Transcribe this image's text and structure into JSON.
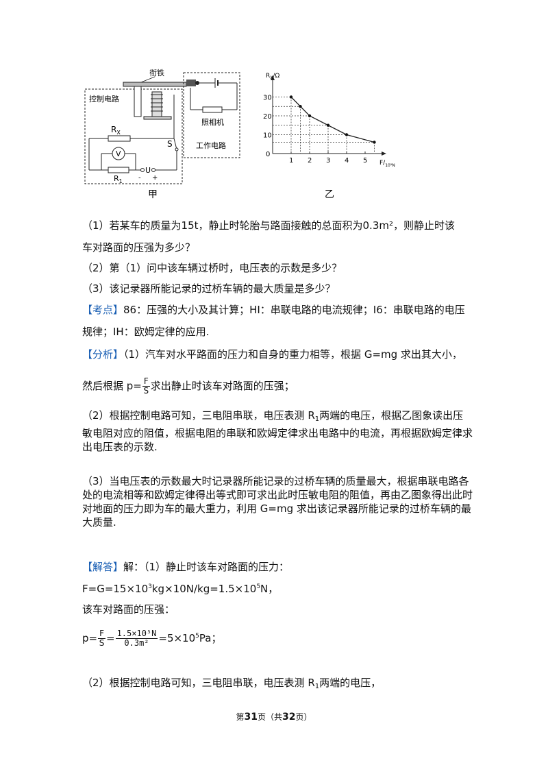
{
  "figure": {
    "circuit": {
      "armature": "衔铁",
      "control_circuit": "控制电路",
      "rx": "R",
      "rx_sub": "X",
      "voltmeter": "V",
      "r1": "R",
      "r1_sub": "1",
      "u": "U",
      "minus": "-",
      "plus": "+",
      "s": "S",
      "camera": "照相机",
      "work_circuit": "工作电路",
      "caption": "甲"
    },
    "graph": {
      "ylabel": "R",
      "ylabel_sub": "X",
      "ylabel_unit": "/Ω",
      "xlabel": "F/",
      "xlabel_unit": "10⁵N",
      "origin": "0",
      "caption": "乙"
    }
  },
  "chart_data": {
    "type": "line",
    "x": [
      1,
      1.5,
      2,
      3,
      4,
      5.5
    ],
    "y": [
      30,
      25,
      20,
      15,
      10,
      6
    ],
    "xticks": [
      "1",
      "2",
      "3",
      "4",
      "5"
    ],
    "yticks": [
      "10",
      "20",
      "30"
    ],
    "xlim": [
      0,
      6
    ],
    "ylim": [
      0,
      40
    ],
    "grid": "dashed guides to points"
  },
  "questions": {
    "q1a": "（1）若某车的质量为15t，静止时轮胎与路面接触的总面积为0.3m²，则静止时该",
    "q1b": "车对路面的压强为多少？",
    "q2": "（2）第（1）问中该车辆过桥时，电压表的示数是多少？",
    "q3": "（3）该记录器所能记录的过桥车辆的最大质量是多少？"
  },
  "kaodian": {
    "tag": "【考点】",
    "line1": "86：压强的大小及其计算；HI：串联电路的电流规律；I6：串联电路的电压",
    "line2": "规律；IH：欧姆定律的应用."
  },
  "fenxi": {
    "tag": "【分析】",
    "line1": "（1）汽车对水平路面的压力和自身的重力相等，根据 G=mg 求出其大小，",
    "line2_pre": "然后根据 p=",
    "frac_num": "F",
    "frac_den": "S",
    "line2_post": "求出静止时该车对路面的压强；",
    "p2_pre": "（2）根据控制电路可知，三电阻串联，电压表测 R",
    "p2_sub": "1",
    "p2_post": "两端的电压，根据乙图象读出压敏电阻对应的阻值，根据电阻的串联和欧姆定律求出电路中的电流，再根据欧姆定律求出电压表的示数.",
    "p3": "（3）当电压表的示数最大时记录器所能记录的过桥车辆的质量最大，根据串联电路各处的电流相等和欧姆定律得出等式即可求出此时压敏电阻的阻值，再由乙图象得出此时对地面的压力即为车的最大重力，利用 G=mg 求出该记录器所能记录的过桥车辆的最大质量."
  },
  "jieda": {
    "tag": "【解答】",
    "line1": "解：（1）静止时该车对路面的压力：",
    "eq1_a": "F=G=15×10",
    "eq1_sup1": "3",
    "eq1_b": "kg×10N/kg=1.5×10",
    "eq1_sup2": "5",
    "eq1_c": "N，",
    "line3": "该车对路面的压强：",
    "p_eq_pre": "p=",
    "p_frac_num": "F",
    "p_frac_den": "S",
    "p_eq_mid": "=",
    "p_big_num": "1.5×10⁵N",
    "p_big_den": "0.3m²",
    "p_eq_res": "=5×10",
    "p_eq_sup": "5",
    "p_eq_unit": "Pa；",
    "q2_pre": "（2）根据控制电路可知，三电阻串联，电压表测 R",
    "q2_sub": "1",
    "q2_post": "两端的电压，"
  },
  "footer": {
    "pre": "第",
    "page": "31",
    "mid": "页（共",
    "total": "32",
    "post": "页）"
  }
}
